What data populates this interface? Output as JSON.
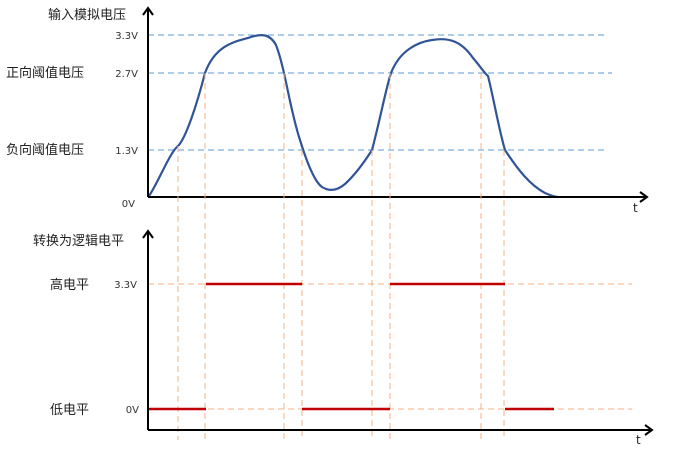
{
  "colors": {
    "axis": "#000000",
    "analog_wave": "#2F5597",
    "threshold_ref": "#5B9BD5",
    "transition_ref": "#F4B183",
    "logic_level": "#C00000"
  },
  "top_plot": {
    "y_title": "输入模拟电压",
    "x_label": "t",
    "tick_labels": {
      "v33": "3.3V",
      "v27": "2.7V",
      "v13": "1.3V",
      "v0": "0V"
    },
    "threshold_labels": {
      "positive": "正向阈值电压",
      "negative": "负向阈值电压"
    }
  },
  "bottom_plot": {
    "y_title": "转换为逻辑电平",
    "x_label": "t",
    "tick_labels": {
      "v33": "3.3V",
      "v0": "0V"
    },
    "level_labels": {
      "high": "高电平",
      "low": "低电平"
    }
  },
  "chart_data": {
    "type": "line",
    "ylim": [
      0,
      3.3
    ],
    "y_ticks": [
      0,
      1.3,
      2.7,
      3.3
    ],
    "thresholds": {
      "positive": 2.7,
      "negative": 1.3
    },
    "logic_levels": {
      "high": 3.3,
      "low": 0
    },
    "logic_segments": [
      {
        "level": "low",
        "from": 0,
        "to": 2
      },
      {
        "level": "high",
        "from": 2,
        "to": 5
      },
      {
        "level": "low",
        "from": 5,
        "to": 8
      },
      {
        "level": "high",
        "from": 8,
        "to": 12
      },
      {
        "level": "low",
        "from": 12,
        "to": 14
      }
    ]
  }
}
